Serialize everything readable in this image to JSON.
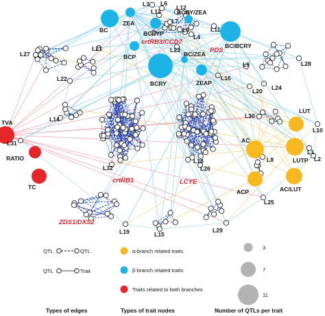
{
  "colors": {
    "alpha_trait": "#f8b820",
    "beta_trait": "#1cb4e6",
    "both_trait": "#e4262a",
    "qtl_fill": "#ffffff",
    "qtl_qtl_edge": "#1f3fb7",
    "qtl_trait_edge_beta": "#8fd4ef",
    "qtl_trait_edge_alpha": "#f6d27a",
    "qtl_trait_edge_both": "#f2a1ae",
    "gene_label": "#e0202a",
    "size_legend": "#b3b3b3"
  },
  "trait_nodes": {
    "beta": [
      {
        "label": "BC"
      },
      {
        "label": "ZEA"
      },
      {
        "label": "BCRYP"
      },
      {
        "label": "BCRY/ZEA"
      },
      {
        "label": "BC/BCRY"
      },
      {
        "label": "BCP"
      },
      {
        "label": "BCRY"
      },
      {
        "label": "BC/ZEA"
      },
      {
        "label": "ZEAP"
      }
    ],
    "alpha": [
      {
        "label": "LUT"
      },
      {
        "label": "AC"
      },
      {
        "label": "LUTP"
      },
      {
        "label": "ACP"
      },
      {
        "label": "AC/LUT"
      }
    ],
    "both": [
      {
        "label": "TVA"
      },
      {
        "label": "RATIO"
      },
      {
        "label": "TC"
      }
    ]
  },
  "qtl_labels": [
    {
      "label": "L3"
    },
    {
      "label": "L6"
    },
    {
      "label": "L12"
    },
    {
      "label": "L13"
    },
    {
      "label": "L7"
    },
    {
      "label": "L5"
    },
    {
      "label": "L4"
    },
    {
      "label": "L11"
    },
    {
      "label": "L23"
    },
    {
      "label": "L27"
    },
    {
      "label": "L21"
    },
    {
      "label": "L22"
    },
    {
      "label": "L9"
    },
    {
      "label": "L28"
    },
    {
      "label": "L16"
    },
    {
      "label": "L20"
    },
    {
      "label": "L24"
    },
    {
      "label": "L14"
    },
    {
      "label": "L30"
    },
    {
      "label": "L31"
    },
    {
      "label": "L10"
    },
    {
      "label": "L1"
    },
    {
      "label": "L2"
    },
    {
      "label": "L8"
    },
    {
      "label": "L32"
    },
    {
      "label": "L18"
    },
    {
      "label": "L26"
    },
    {
      "label": "L25"
    },
    {
      "label": "L19"
    },
    {
      "label": "L15"
    },
    {
      "label": "L29"
    }
  ],
  "gene_labels": [
    {
      "label": "crtRB3/CCD7"
    },
    {
      "label": "PDS"
    },
    {
      "label": "crtRB1"
    },
    {
      "label": "LCYE"
    },
    {
      "label": "ZDS1/DXS2"
    }
  ],
  "legend": {
    "edges": {
      "qtl_qtl": {
        "left": "QTL",
        "right": "QTL"
      },
      "qtl_trait": {
        "left": "QTL",
        "right": "Trait"
      },
      "title": "Types of edges"
    },
    "trait_types": {
      "items": [
        {
          "text": "α-branch related traits"
        },
        {
          "text": "β-branch related traits"
        },
        {
          "text": "Traits related to both branches"
        }
      ],
      "title": "Types of trait nodes"
    },
    "size": {
      "items": [
        {
          "value": "3"
        },
        {
          "value": "7"
        },
        {
          "value": "11"
        }
      ],
      "title": "Number of QTLs per trait"
    }
  }
}
